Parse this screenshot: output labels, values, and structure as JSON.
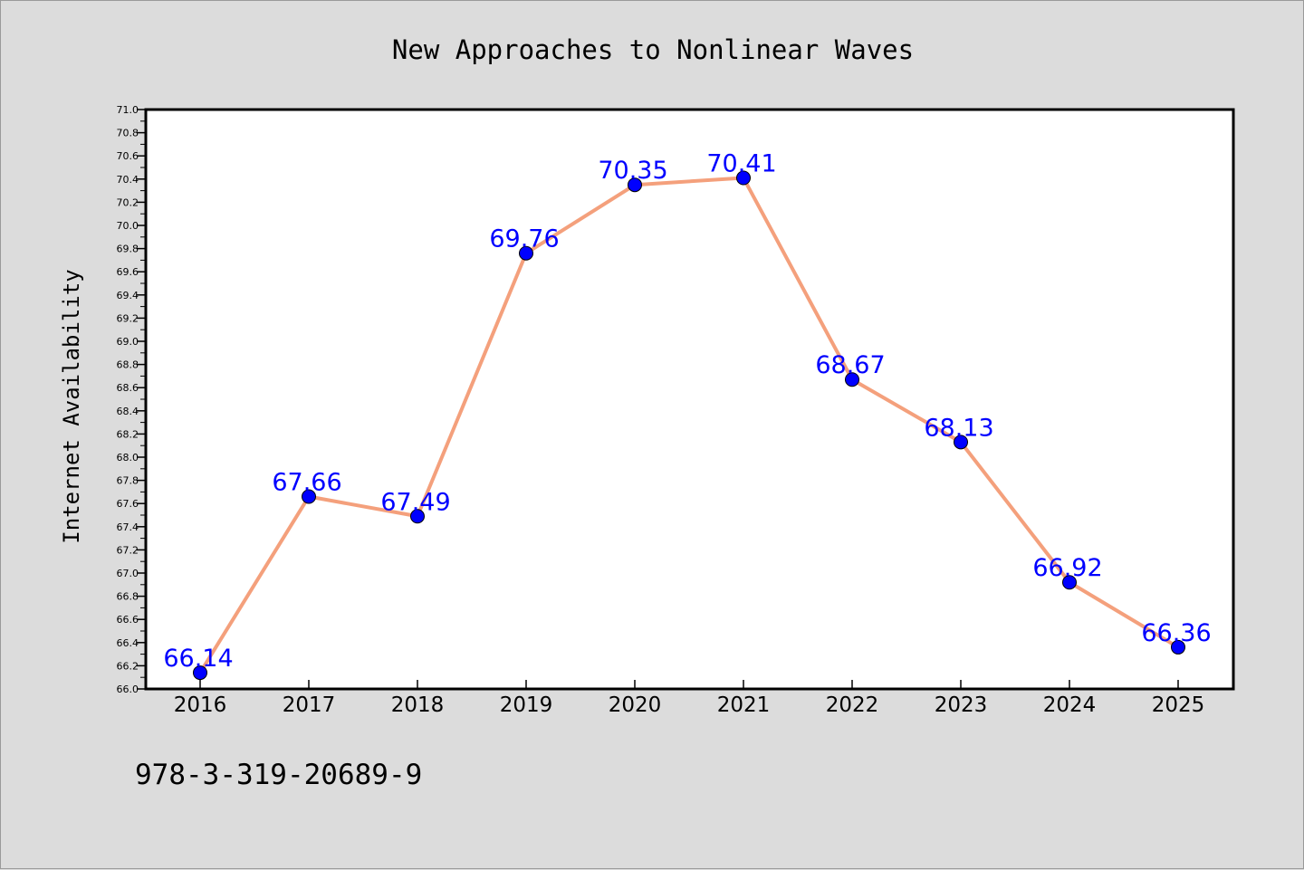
{
  "chart_data": {
    "type": "line",
    "title": "New Approaches to Nonlinear Waves",
    "xlabel": "",
    "ylabel": "Internet Availability",
    "categories": [
      "2016",
      "2017",
      "2018",
      "2019",
      "2020",
      "2021",
      "2022",
      "2023",
      "2024",
      "2025"
    ],
    "values": [
      66.14,
      67.66,
      67.49,
      69.76,
      70.35,
      70.41,
      68.67,
      68.13,
      66.92,
      66.36
    ],
    "data_labels": [
      "66.14",
      "67.66",
      "67.49",
      "69.76",
      "70.35",
      "70.41",
      "68.67",
      "68.13",
      "66.92",
      "66.36"
    ],
    "ylim": [
      66.0,
      71.0
    ],
    "y_ticks": [
      "66.0",
      "66.2",
      "66.4",
      "66.6",
      "66.8",
      "67.0",
      "67.2",
      "67.4",
      "67.6",
      "67.8",
      "68.0",
      "68.2",
      "68.4",
      "68.6",
      "68.8",
      "69.0",
      "69.2",
      "69.4",
      "69.6",
      "69.8",
      "70.0",
      "70.2",
      "70.4",
      "70.6",
      "70.8",
      "71.0"
    ],
    "grid": false,
    "legend": "none",
    "colors": {
      "line": "#f4a07c",
      "marker": "#0000ff",
      "label": "#0000ff",
      "background": "#dcdcdc",
      "plot": "#ffffff"
    }
  },
  "footer": {
    "isbn": "978-3-319-20689-9"
  }
}
